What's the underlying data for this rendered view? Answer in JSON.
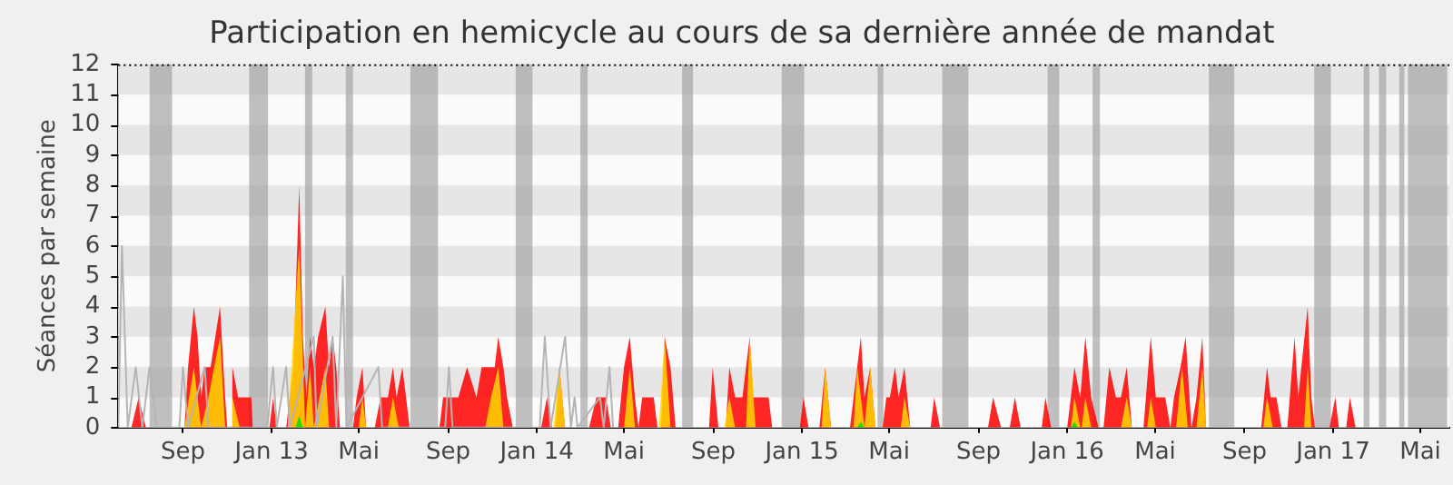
{
  "chart_data": {
    "type": "area",
    "title": "Participation en hemicycle au cours de sa dernière année de mandat",
    "ylabel": "Séances par semaine",
    "xlim": [
      "2012-06-04",
      "2017-06-10"
    ],
    "xticks": [
      {
        "value": "2012-09-01",
        "label": "Sep"
      },
      {
        "value": "2013-01-01",
        "label": "Jan 13"
      },
      {
        "value": "2013-05-01",
        "label": "Mai"
      },
      {
        "value": "2013-09-01",
        "label": "Sep"
      },
      {
        "value": "2014-01-01",
        "label": "Jan 14"
      },
      {
        "value": "2014-05-01",
        "label": "Mai"
      },
      {
        "value": "2014-09-01",
        "label": "Sep"
      },
      {
        "value": "2015-01-01",
        "label": "Jan 15"
      },
      {
        "value": "2015-05-01",
        "label": "Mai"
      },
      {
        "value": "2015-09-01",
        "label": "Sep"
      },
      {
        "value": "2016-01-01",
        "label": "Jan 16"
      },
      {
        "value": "2016-05-01",
        "label": "Mai"
      },
      {
        "value": "2016-09-01",
        "label": "Sep"
      },
      {
        "value": "2017-01-01",
        "label": "Jan 17"
      },
      {
        "value": "2017-05-01",
        "label": "Mai"
      }
    ],
    "ylim": [
      0,
      12
    ],
    "yticks": [
      0,
      1,
      2,
      3,
      4,
      5,
      6,
      7,
      8,
      9,
      10,
      11,
      12
    ],
    "marker": "none",
    "bands": [
      {
        "axis": "y",
        "from": 1,
        "to": 2,
        "color": "#e6e6e6"
      },
      {
        "axis": "y",
        "from": 3,
        "to": 4,
        "color": "#e6e6e6"
      },
      {
        "axis": "y",
        "from": 5,
        "to": 6,
        "color": "#e6e6e6"
      },
      {
        "axis": "y",
        "from": 7,
        "to": 8,
        "color": "#e6e6e6"
      },
      {
        "axis": "y",
        "from": 9,
        "to": 10,
        "color": "#e6e6e6"
      },
      {
        "axis": "y",
        "from": 11,
        "to": 12,
        "color": "#e6e6e6"
      },
      {
        "axis": "x",
        "from": "2012-07-17",
        "to": "2012-08-17",
        "color": "#a0a0a0"
      },
      {
        "axis": "x",
        "from": "2012-12-01",
        "to": "2012-12-27",
        "color": "#a0a0a0"
      },
      {
        "axis": "x",
        "from": "2013-02-16",
        "to": "2013-02-26",
        "color": "#a0a0a0"
      },
      {
        "axis": "x",
        "from": "2013-04-13",
        "to": "2013-04-23",
        "color": "#a0a0a0"
      },
      {
        "axis": "x",
        "from": "2013-07-11",
        "to": "2013-08-18",
        "color": "#a0a0a0"
      },
      {
        "axis": "x",
        "from": "2013-12-03",
        "to": "2013-12-26",
        "color": "#a0a0a0"
      },
      {
        "axis": "x",
        "from": "2014-03-02",
        "to": "2014-03-12",
        "color": "#a0a0a0"
      },
      {
        "axis": "x",
        "from": "2014-07-20",
        "to": "2014-08-04",
        "color": "#a0a0a0"
      },
      {
        "axis": "x",
        "from": "2014-12-04",
        "to": "2015-01-04",
        "color": "#a0a0a0"
      },
      {
        "axis": "x",
        "from": "2015-04-15",
        "to": "2015-04-23",
        "color": "#a0a0a0"
      },
      {
        "axis": "x",
        "from": "2015-07-13",
        "to": "2015-08-18",
        "color": "#a0a0a0"
      },
      {
        "axis": "x",
        "from": "2015-12-05",
        "to": "2015-12-21",
        "color": "#a0a0a0"
      },
      {
        "axis": "x",
        "from": "2016-02-05",
        "to": "2016-02-15",
        "color": "#a0a0a0"
      },
      {
        "axis": "x",
        "from": "2016-07-14",
        "to": "2016-08-18",
        "color": "#a0a0a0"
      },
      {
        "axis": "x",
        "from": "2016-12-06",
        "to": "2016-12-29",
        "color": "#a0a0a0"
      },
      {
        "axis": "x",
        "from": "2017-02-12",
        "to": "2017-02-20",
        "color": "#a0a0a0"
      },
      {
        "axis": "x",
        "from": "2017-03-05",
        "to": "2017-03-15",
        "color": "#a0a0a0"
      },
      {
        "axis": "x",
        "from": "2017-04-02",
        "to": "2017-04-09",
        "color": "#a0a0a0"
      },
      {
        "axis": "x",
        "from": "2017-04-14",
        "to": "2017-06-07",
        "color": "#a0a0a0"
      }
    ],
    "series": [
      {
        "type": "area",
        "color": "#ff0000",
        "x": [
          "2012-06-04",
          "2012-06-22",
          "2012-07-02",
          "2012-07-12",
          "2012-09-03",
          "2012-09-08",
          "2012-09-16",
          "2012-09-21",
          "2012-09-26",
          "2012-10-01",
          "2012-10-09",
          "2012-10-22",
          "2012-10-29",
          "2012-11-01",
          "2012-11-06",
          "2012-11-08",
          "2012-11-16",
          "2012-11-26",
          "2012-12-04",
          "2012-12-06",
          "2012-12-29",
          "2013-01-03",
          "2013-01-08",
          "2013-01-21",
          "2013-01-26",
          "2013-01-31",
          "2013-02-08",
          "2013-02-13",
          "2013-02-18",
          "2013-02-23",
          "2013-02-28",
          "2013-03-06",
          "2013-03-16",
          "2013-03-21",
          "2013-03-26",
          "2013-03-31",
          "2013-04-05",
          "2013-04-23",
          "2013-04-28",
          "2013-05-06",
          "2013-05-11",
          "2013-05-23",
          "2013-05-31",
          "2013-06-10",
          "2013-06-17",
          "2013-06-22",
          "2013-06-30",
          "2013-07-05",
          "2013-07-10",
          "2013-08-20",
          "2013-08-25",
          "2013-09-02",
          "2013-09-15",
          "2013-09-27",
          "2013-10-10",
          "2013-10-17",
          "2013-10-27",
          "2013-11-04",
          "2013-11-09",
          "2013-11-16",
          "2013-11-21",
          "2013-11-29",
          "2014-01-07",
          "2014-01-15",
          "2014-01-22",
          "2014-01-27",
          "2014-02-01",
          "2014-02-09",
          "2014-03-14",
          "2014-03-24",
          "2014-04-06",
          "2014-04-13",
          "2014-04-23",
          "2014-05-01",
          "2014-05-09",
          "2014-05-16",
          "2014-05-21",
          "2014-05-26",
          "2014-06-03",
          "2014-06-11",
          "2014-06-16",
          "2014-06-21",
          "2014-06-26",
          "2014-07-04",
          "2014-07-11",
          "2014-08-26",
          "2014-08-31",
          "2014-09-08",
          "2014-09-18",
          "2014-09-23",
          "2014-10-01",
          "2014-10-11",
          "2014-10-21",
          "2014-10-26",
          "2014-11-03",
          "2014-11-11",
          "2014-11-16",
          "2014-11-21",
          "2014-12-29",
          "2015-01-03",
          "2015-01-10",
          "2015-01-25",
          "2015-02-02",
          "2015-02-10",
          "2015-03-08",
          "2015-03-18",
          "2015-03-23",
          "2015-03-28",
          "2015-04-05",
          "2015-04-12",
          "2015-04-22",
          "2015-04-27",
          "2015-05-02",
          "2015-05-09",
          "2015-05-14",
          "2015-05-22",
          "2015-05-30",
          "2015-06-27",
          "2015-07-02",
          "2015-07-10",
          "2015-09-14",
          "2015-09-21",
          "2015-10-02",
          "2015-10-14",
          "2015-10-21",
          "2015-10-29",
          "2015-11-27",
          "2015-12-02",
          "2015-12-10",
          "2016-01-01",
          "2016-01-11",
          "2016-01-19",
          "2016-01-26",
          "2016-02-03",
          "2016-02-13",
          "2016-02-20",
          "2016-02-28",
          "2016-03-08",
          "2016-03-15",
          "2016-03-23",
          "2016-03-30",
          "2016-04-15",
          "2016-04-25",
          "2016-05-02",
          "2016-05-15",
          "2016-05-22",
          "2016-05-27",
          "2016-06-05",
          "2016-06-12",
          "2016-06-20",
          "2016-06-27",
          "2016-07-05",
          "2016-07-10",
          "2016-09-24",
          "2016-10-02",
          "2016-10-07",
          "2016-10-15",
          "2016-10-22",
          "2016-10-30",
          "2016-11-09",
          "2016-11-14",
          "2016-11-27",
          "2016-12-02",
          "2016-12-07",
          "2016-12-27",
          "2017-01-04",
          "2017-01-09",
          "2017-01-19",
          "2017-01-24",
          "2017-02-01",
          "2017-06-10"
        ],
        "values": [
          0,
          0,
          1,
          0,
          0,
          2,
          4,
          3,
          1,
          2,
          2,
          4,
          1,
          0,
          0,
          2,
          1,
          1,
          1,
          0,
          0,
          1,
          0,
          0,
          1,
          2,
          8,
          3,
          1,
          3,
          2,
          3,
          4,
          2,
          3,
          2,
          0,
          0,
          1,
          2,
          0,
          0,
          1,
          1,
          2,
          1,
          2,
          1,
          0,
          0,
          1,
          1,
          1,
          2,
          1,
          2,
          2,
          2,
          3,
          2,
          1,
          0,
          0,
          1,
          0,
          0,
          2,
          0,
          0,
          1,
          1,
          0,
          0,
          2,
          3,
          1,
          0,
          1,
          1,
          1,
          0,
          0,
          3,
          2,
          0,
          0,
          2,
          0,
          0,
          2,
          1,
          1,
          3,
          1,
          1,
          1,
          1,
          0,
          0,
          1,
          0,
          0,
          2,
          0,
          0,
          2,
          3,
          1,
          2,
          0,
          0,
          1,
          1,
          2,
          1,
          2,
          0,
          0,
          1,
          0,
          0,
          1,
          0,
          0,
          1,
          0,
          0,
          1,
          0,
          0,
          2,
          1,
          3,
          1,
          0,
          0,
          2,
          1,
          1,
          2,
          0,
          0,
          3,
          1,
          1,
          0,
          1,
          2,
          3,
          0,
          1,
          3,
          0,
          0,
          2,
          1,
          1,
          0,
          0,
          3,
          1,
          4,
          1,
          0,
          0,
          1,
          0,
          0,
          1,
          0,
          0
        ]
      },
      {
        "type": "area",
        "color": "#ffd700",
        "x": [
          "2012-09-03",
          "2012-09-16",
          "2012-09-26",
          "2012-10-06",
          "2012-10-22",
          "2012-10-29",
          "2012-11-06",
          "2012-11-08",
          "2012-11-18",
          "2013-01-23",
          "2013-02-08",
          "2013-02-16",
          "2013-02-23",
          "2013-02-28",
          "2013-03-16",
          "2013-03-21",
          "2013-05-01",
          "2013-05-06",
          "2013-05-11",
          "2013-06-10",
          "2013-06-17",
          "2013-06-25",
          "2013-10-22",
          "2013-10-30",
          "2013-11-09",
          "2013-11-16",
          "2014-01-24",
          "2014-02-01",
          "2014-02-09",
          "2014-05-01",
          "2014-05-09",
          "2014-05-16",
          "2014-06-18",
          "2014-06-26",
          "2014-07-04",
          "2014-09-16",
          "2014-09-23",
          "2014-10-01",
          "2014-10-16",
          "2014-10-21",
          "2014-10-29",
          "2015-01-28",
          "2015-02-02",
          "2015-02-10",
          "2015-03-13",
          "2015-03-18",
          "2015-03-28",
          "2015-04-05",
          "2015-04-12",
          "2015-05-17",
          "2015-05-22",
          "2015-05-30",
          "2016-01-06",
          "2016-01-11",
          "2016-01-19",
          "2016-01-21",
          "2016-01-26",
          "2016-02-03",
          "2016-03-15",
          "2016-03-23",
          "2016-03-30",
          "2016-04-20",
          "2016-04-25",
          "2016-05-02",
          "2016-05-30",
          "2016-06-07",
          "2016-06-15",
          "2016-06-27",
          "2016-07-05",
          "2016-07-10",
          "2016-09-27",
          "2016-10-02",
          "2016-10-10",
          "2016-11-22",
          "2016-11-27",
          "2016-12-02"
        ],
        "values": [
          0,
          2,
          0,
          1,
          3,
          0,
          0,
          1,
          0,
          0,
          6,
          0,
          2,
          0,
          2,
          0,
          0,
          1,
          0,
          0,
          1,
          0,
          0,
          1,
          2,
          0,
          0,
          2,
          0,
          0,
          2,
          0,
          0,
          3,
          0,
          0,
          1,
          0,
          0,
          3,
          0,
          0,
          2,
          0,
          0,
          2,
          0,
          2,
          0,
          0,
          1,
          0,
          0,
          1,
          0,
          0,
          1,
          0,
          0,
          1,
          0,
          0,
          1,
          0,
          0,
          2,
          0,
          0,
          2,
          0,
          0,
          1,
          0,
          0,
          2,
          0
        ]
      },
      {
        "type": "area",
        "color": "#00e000",
        "x": [
          "2013-02-03",
          "2013-02-08",
          "2013-02-13",
          "2015-03-18",
          "2015-03-23",
          "2015-03-28",
          "2016-01-06",
          "2016-01-11",
          "2016-01-16"
        ],
        "values": [
          0,
          0.4,
          0,
          0,
          0.2,
          0,
          0,
          0.2,
          0
        ]
      },
      {
        "type": "line",
        "color": "#b4b4b4",
        "x": [
          "2012-06-04",
          "2012-06-09",
          "2012-06-17",
          "2012-06-28",
          "2012-07-07",
          "2012-07-17",
          "2012-07-27",
          "2012-08-27",
          "2012-09-01",
          "2012-09-08",
          "2012-10-01",
          "2012-10-06",
          "2012-12-26",
          "2013-01-03",
          "2013-01-08",
          "2013-01-21",
          "2013-01-26",
          "2013-02-28",
          "2013-03-04",
          "2013-03-26",
          "2013-03-31",
          "2013-04-09",
          "2013-04-14",
          "2013-05-28",
          "2013-06-02",
          "2013-08-28",
          "2013-09-02",
          "2013-09-07",
          "2014-01-05",
          "2014-01-12",
          "2014-01-20",
          "2014-02-09",
          "2014-02-17",
          "2014-02-22",
          "2014-02-26",
          "2014-03-29",
          "2014-04-03",
          "2014-04-11",
          "2014-04-16"
        ],
        "values": [
          0,
          6,
          0,
          2,
          0,
          2,
          0,
          0,
          2,
          0,
          2,
          0,
          0,
          2,
          0,
          2,
          0,
          3,
          0,
          3,
          0,
          5,
          0,
          2,
          0,
          0,
          2,
          0,
          0,
          3,
          0,
          3,
          0,
          1,
          0,
          1,
          0,
          2,
          0
        ]
      }
    ]
  }
}
